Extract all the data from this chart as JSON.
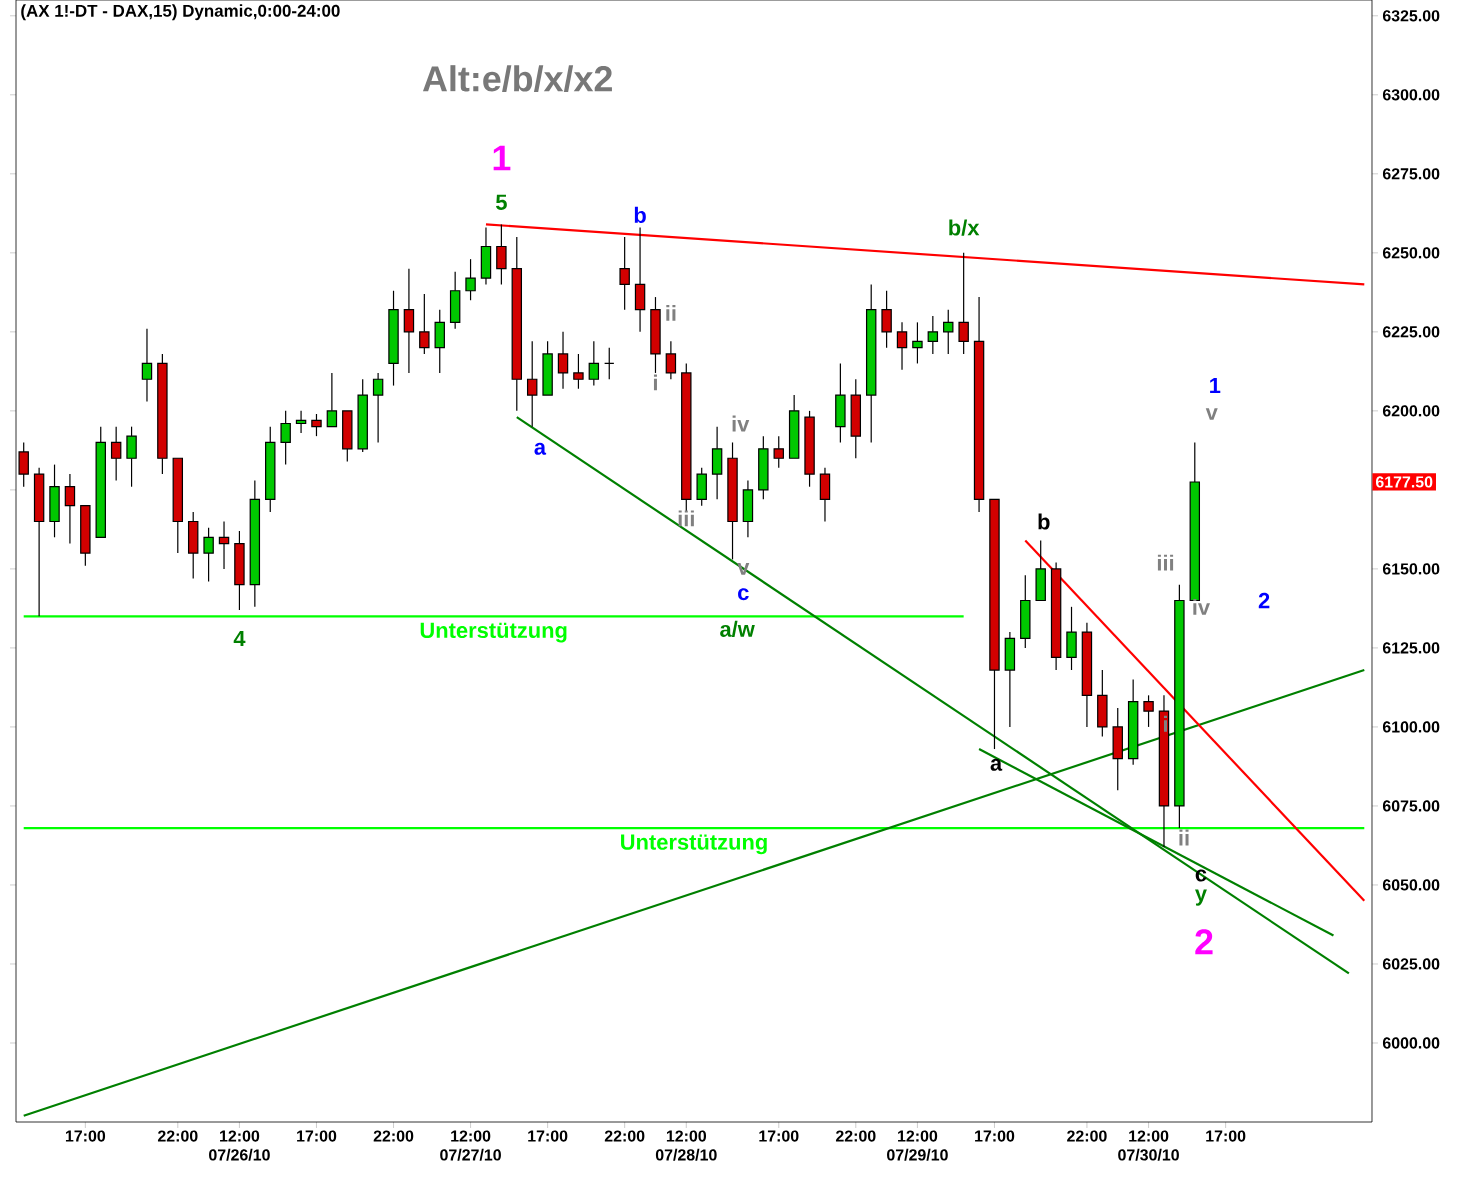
{
  "chart_data": {
    "type": "candlestick",
    "title": "(AX 1!-DT - DAX,15) Dynamic,0:00-24:00",
    "categories": [
      null,
      null,
      null,
      null,
      "17:00",
      null,
      null,
      null,
      null,
      null,
      "22:00",
      null,
      null,
      null,
      "12:00 07/26/10",
      null,
      null,
      null,
      null,
      "17:00",
      null,
      null,
      null,
      null,
      "22:00",
      null,
      null,
      null,
      null,
      "12:00 07/27/10",
      null,
      null,
      null,
      null,
      "17:00",
      null,
      null,
      null,
      null,
      "22:00",
      null,
      null,
      null,
      "12:00 07/28/10",
      null,
      null,
      null,
      null,
      null,
      "17:00",
      null,
      null,
      null,
      null,
      "22:00",
      null,
      null,
      null,
      "12:00 07/29/10",
      null,
      null,
      null,
      null,
      "17:00",
      null,
      null,
      null,
      null,
      null,
      "22:00",
      null,
      null,
      null,
      "12:00 07/30/10",
      null,
      null,
      null,
      null,
      "17:00",
      null,
      null,
      null,
      null,
      null,
      null,
      null,
      null,
      null
    ],
    "ohlc": [
      [
        6187,
        6190,
        6176,
        6180
      ],
      [
        6180,
        6182,
        6135,
        6165
      ],
      [
        6165,
        6183,
        6160,
        6176
      ],
      [
        6176,
        6180,
        6158,
        6170
      ],
      [
        6170,
        6170,
        6151,
        6155
      ],
      [
        6160,
        6195,
        6160,
        6190
      ],
      [
        6190,
        6195,
        6178,
        6185
      ],
      [
        6185,
        6195,
        6176,
        6192
      ],
      [
        6210,
        6226,
        6203,
        6215
      ],
      [
        6215,
        6218,
        6180,
        6185
      ],
      [
        6185,
        6185,
        6155,
        6165
      ],
      [
        6165,
        6168,
        6147,
        6155
      ],
      [
        6155,
        6163,
        6146,
        6160
      ],
      [
        6160,
        6165,
        6150,
        6158
      ],
      [
        6158,
        6162,
        6137,
        6145
      ],
      [
        6145,
        6178,
        6138,
        6172
      ],
      [
        6172,
        6195,
        6168,
        6190
      ],
      [
        6190,
        6200,
        6183,
        6196
      ],
      [
        6196,
        6200,
        6193,
        6197
      ],
      [
        6197,
        6199,
        6192,
        6195
      ],
      [
        6195,
        6212,
        6195,
        6200
      ],
      [
        6200,
        6200,
        6184,
        6188
      ],
      [
        6188,
        6210,
        6187,
        6205
      ],
      [
        6205,
        6212,
        6190,
        6210
      ],
      [
        6215,
        6238,
        6208,
        6232
      ],
      [
        6232,
        6245,
        6212,
        6225
      ],
      [
        6225,
        6237,
        6218,
        6220
      ],
      [
        6220,
        6232,
        6212,
        6228
      ],
      [
        6228,
        6244,
        6226,
        6238
      ],
      [
        6238,
        6248,
        6235,
        6242
      ],
      [
        6242,
        6258,
        6240,
        6252
      ],
      [
        6252,
        6259,
        6240,
        6245
      ],
      [
        6245,
        6255,
        6200,
        6210
      ],
      [
        6210,
        6222,
        6195,
        6205
      ],
      [
        6205,
        6222,
        6205,
        6218
      ],
      [
        6218,
        6225,
        6207,
        6212
      ],
      [
        6212,
        6218,
        6207,
        6210
      ],
      [
        6210,
        6222,
        6208,
        6215
      ],
      [
        6215,
        6220,
        6210,
        6215
      ],
      [
        6245,
        6255,
        6232,
        6240
      ],
      [
        6240,
        6258,
        6225,
        6232
      ],
      [
        6232,
        6236,
        6212,
        6218
      ],
      [
        6218,
        6222,
        6210,
        6212
      ],
      [
        6212,
        6215,
        6168,
        6172
      ],
      [
        6172,
        6182,
        6170,
        6180
      ],
      [
        6180,
        6195,
        6172,
        6188
      ],
      [
        6185,
        6190,
        6153,
        6165
      ],
      [
        6165,
        6178,
        6160,
        6175
      ],
      [
        6175,
        6192,
        6172,
        6188
      ],
      [
        6188,
        6192,
        6182,
        6185
      ],
      [
        6185,
        6205,
        6185,
        6200
      ],
      [
        6198,
        6200,
        6176,
        6180
      ],
      [
        6180,
        6182,
        6165,
        6172
      ],
      [
        6195,
        6215,
        6190,
        6205
      ],
      [
        6205,
        6210,
        6185,
        6192
      ],
      [
        6205,
        6240,
        6190,
        6232
      ],
      [
        6232,
        6238,
        6220,
        6225
      ],
      [
        6225,
        6228,
        6213,
        6220
      ],
      [
        6220,
        6228,
        6215,
        6222
      ],
      [
        6222,
        6230,
        6218,
        6225
      ],
      [
        6225,
        6232,
        6218,
        6228
      ],
      [
        6228,
        6250,
        6218,
        6222
      ],
      [
        6222,
        6236,
        6168,
        6172
      ],
      [
        6172,
        6172,
        6093,
        6118
      ],
      [
        6118,
        6130,
        6100,
        6128
      ],
      [
        6128,
        6148,
        6125,
        6140
      ],
      [
        6140,
        6159,
        6140,
        6150
      ],
      [
        6150,
        6152,
        6118,
        6122
      ],
      [
        6122,
        6138,
        6118,
        6130
      ],
      [
        6130,
        6133,
        6100,
        6110
      ],
      [
        6110,
        6118,
        6097,
        6100
      ],
      [
        6100,
        6106,
        6080,
        6090
      ],
      [
        6090,
        6115,
        6088,
        6108
      ],
      [
        6108,
        6110,
        6100,
        6105
      ],
      [
        6105,
        6110,
        6062,
        6075
      ],
      [
        6075,
        6145,
        6068,
        6140
      ],
      [
        6140,
        6190,
        6140,
        6177.5
      ],
      null,
      null,
      null,
      null,
      null,
      null,
      null,
      null,
      null,
      null,
      null
    ],
    "series": [
      {
        "type": "line",
        "color": "#ff0000",
        "values": [
          null,
          null,
          null,
          null,
          null,
          null,
          null,
          null,
          null,
          null,
          null,
          null,
          null,
          null,
          null,
          null,
          null,
          null,
          null,
          null,
          null,
          null,
          null,
          null,
          null,
          null,
          null,
          null,
          null,
          null,
          6259,
          null,
          null,
          null,
          null,
          null,
          null,
          null,
          null,
          null,
          null,
          null,
          null,
          null,
          null,
          null,
          null,
          null,
          null,
          null,
          null,
          null,
          null,
          null,
          null,
          null,
          null,
          null,
          null,
          null,
          null,
          null,
          null,
          null,
          null,
          null,
          null,
          null,
          null,
          null,
          null,
          null,
          null,
          null,
          null,
          null,
          null,
          null,
          null,
          null,
          null,
          null,
          null,
          null,
          null,
          null,
          null,
          6240
        ]
      },
      {
        "type": "line",
        "name": "Unterstützung",
        "color": "#00ff00",
        "values": [
          6135,
          null,
          null,
          null,
          null,
          null,
          null,
          null,
          null,
          null,
          null,
          null,
          null,
          null,
          null,
          null,
          null,
          null,
          null,
          null,
          null,
          null,
          null,
          null,
          null,
          null,
          null,
          null,
          null,
          null,
          null,
          null,
          null,
          null,
          null,
          null,
          null,
          null,
          null,
          null,
          null,
          null,
          null,
          null,
          null,
          null,
          null,
          null,
          null,
          null,
          null,
          null,
          null,
          null,
          null,
          null,
          null,
          null,
          null,
          null,
          null,
          6135,
          null,
          null,
          null,
          null,
          null,
          null,
          null,
          null,
          null,
          null,
          null,
          null,
          null,
          null,
          null,
          null,
          null,
          null,
          null,
          null,
          null,
          null,
          null,
          null,
          null,
          null
        ]
      },
      {
        "type": "line",
        "name": "Unterstützung",
        "color": "#00ff00",
        "values": [
          6068,
          null,
          null,
          null,
          null,
          null,
          null,
          null,
          null,
          null,
          null,
          null,
          null,
          null,
          null,
          null,
          null,
          null,
          null,
          null,
          null,
          null,
          null,
          null,
          null,
          null,
          null,
          null,
          null,
          null,
          null,
          null,
          null,
          null,
          null,
          null,
          null,
          null,
          null,
          null,
          null,
          null,
          null,
          null,
          null,
          null,
          null,
          null,
          null,
          null,
          null,
          null,
          null,
          null,
          null,
          null,
          null,
          null,
          null,
          null,
          null,
          null,
          null,
          null,
          null,
          null,
          null,
          null,
          null,
          null,
          null,
          null,
          null,
          null,
          null,
          null,
          null,
          null,
          null,
          null,
          null,
          null,
          null,
          null,
          null,
          null,
          null,
          6068
        ]
      },
      {
        "type": "line",
        "color": "#008000",
        "values": [
          5977,
          null,
          null,
          null,
          null,
          null,
          null,
          null,
          null,
          null,
          null,
          null,
          null,
          null,
          null,
          null,
          null,
          null,
          null,
          null,
          null,
          null,
          null,
          null,
          null,
          null,
          null,
          null,
          null,
          null,
          null,
          null,
          null,
          null,
          null,
          null,
          null,
          null,
          null,
          null,
          null,
          null,
          null,
          null,
          null,
          null,
          null,
          null,
          null,
          null,
          null,
          null,
          null,
          null,
          null,
          null,
          null,
          null,
          null,
          null,
          null,
          null,
          null,
          null,
          null,
          null,
          null,
          null,
          null,
          null,
          null,
          null,
          null,
          null,
          null,
          null,
          null,
          null,
          null,
          null,
          null,
          null,
          null,
          null,
          null,
          null,
          null,
          6118
        ]
      },
      {
        "type": "line",
        "color": "#008000",
        "values": [
          null,
          null,
          null,
          null,
          null,
          null,
          null,
          null,
          null,
          null,
          null,
          null,
          null,
          null,
          null,
          null,
          null,
          null,
          null,
          null,
          null,
          null,
          null,
          null,
          null,
          null,
          null,
          null,
          null,
          null,
          null,
          null,
          6198,
          null,
          null,
          null,
          null,
          null,
          null,
          null,
          null,
          null,
          null,
          null,
          null,
          null,
          null,
          null,
          null,
          null,
          null,
          null,
          null,
          null,
          null,
          null,
          null,
          null,
          null,
          null,
          null,
          null,
          null,
          null,
          null,
          null,
          null,
          null,
          null,
          null,
          null,
          null,
          null,
          null,
          null,
          null,
          null,
          null,
          null,
          null,
          null,
          null,
          null,
          null,
          null,
          null,
          6022,
          null
        ]
      },
      {
        "type": "line",
        "color": "#008000",
        "values": [
          null,
          null,
          null,
          null,
          null,
          null,
          null,
          null,
          null,
          null,
          null,
          null,
          null,
          null,
          null,
          null,
          null,
          null,
          null,
          null,
          null,
          null,
          null,
          null,
          null,
          null,
          null,
          null,
          null,
          null,
          null,
          null,
          null,
          null,
          null,
          null,
          null,
          null,
          null,
          null,
          null,
          null,
          null,
          null,
          null,
          null,
          null,
          null,
          null,
          null,
          null,
          null,
          null,
          null,
          null,
          null,
          null,
          null,
          null,
          null,
          null,
          null,
          6093,
          null,
          null,
          null,
          null,
          null,
          null,
          null,
          null,
          null,
          null,
          null,
          null,
          null,
          null,
          null,
          null,
          null,
          null,
          null,
          null,
          null,
          null,
          6034,
          null,
          null
        ]
      },
      {
        "type": "line",
        "color": "#ff0000",
        "values": [
          null,
          null,
          null,
          null,
          null,
          null,
          null,
          null,
          null,
          null,
          null,
          null,
          null,
          null,
          null,
          null,
          null,
          null,
          null,
          null,
          null,
          null,
          null,
          null,
          null,
          null,
          null,
          null,
          null,
          null,
          null,
          null,
          null,
          null,
          null,
          null,
          null,
          null,
          null,
          null,
          null,
          null,
          null,
          null,
          null,
          null,
          null,
          null,
          null,
          null,
          null,
          null,
          null,
          null,
          null,
          null,
          null,
          null,
          null,
          null,
          null,
          null,
          null,
          null,
          null,
          6159,
          null,
          null,
          null,
          null,
          null,
          null,
          null,
          null,
          null,
          null,
          null,
          null,
          null,
          null,
          null,
          null,
          null,
          null,
          null,
          null,
          null,
          6045
        ]
      }
    ],
    "annotations": [
      "Alt:e/b/x/x2",
      "1",
      "5",
      "b",
      "b/x",
      "ii",
      "i",
      "a",
      "iv",
      "iii",
      "v",
      "c",
      "a/w",
      "4",
      "b",
      "a",
      "iii",
      "iv",
      "i",
      "ii",
      "c",
      "y",
      "2",
      "1",
      "v",
      "2",
      "6177.50"
    ],
    "ylim": [
      5975,
      6330
    ],
    "yticks": [
      {
        "value": 6000,
        "label": "6000.00"
      },
      {
        "value": 6025,
        "label": "6025.00"
      },
      {
        "value": 6050,
        "label": "6050.00"
      },
      {
        "value": 6075,
        "label": "6075.00"
      },
      {
        "value": 6100,
        "label": "6100.00"
      },
      {
        "value": 6125,
        "label": "6125.00"
      },
      {
        "value": 6150,
        "label": "6150.00"
      },
      {
        "value": 6175,
        "label": null
      },
      {
        "value": 6200,
        "label": "6200.00"
      },
      {
        "value": 6225,
        "label": "6225.00"
      },
      {
        "value": 6250,
        "label": "6250.00"
      },
      {
        "value": 6275,
        "label": "6275.00"
      },
      {
        "value": 6300,
        "label": "6300.00"
      },
      {
        "value": 6325,
        "label": "6325.00"
      }
    ]
  }
}
